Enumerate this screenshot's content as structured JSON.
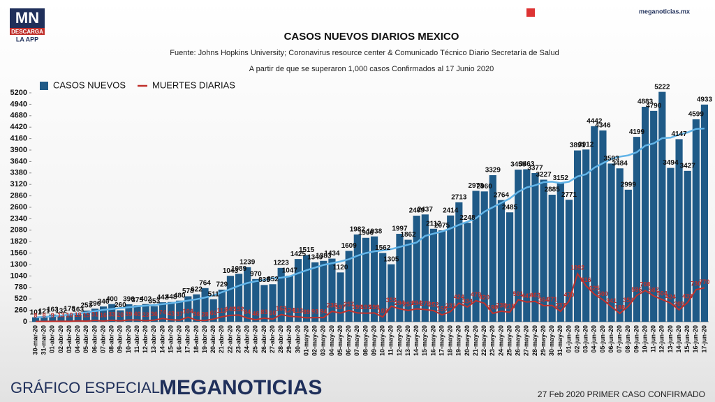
{
  "brand": {
    "logo": "MN",
    "logo_sub": "DESCARGA",
    "logo_app": "LA APP",
    "site": "meganoticias.mx",
    "footer_left": "GRÁFICO ESPECIAL",
    "footer_brand": "MEGANOTICIAS",
    "footer_right": "27 Feb 2020 PRIMER CASO CONFIRMADO"
  },
  "chart_data": {
    "type": "bar",
    "title": "CASOS NUEVOS DIARIOS MEXICO",
    "subtitle": "Fuente: Johns Hopkins University; Coronavirus resource center & Comunicado Técnico Diario Secretaría de Salud",
    "subtitle2": "A partir de que se superaron 1,000 casos Confirmados al 17 Junio 2020",
    "categories": [
      "30-mar-20",
      "31-mar-20",
      "01-abr-20",
      "02-abr-20",
      "03-abr-20",
      "04-abr-20",
      "05-abr-20",
      "06-abr-20",
      "07-abr-20",
      "08-abr-20",
      "09-abr-20",
      "10-abr-20",
      "11-abr-20",
      "12-abr-20",
      "13-abr-20",
      "14-abr-20",
      "15-abr-20",
      "16-abr-20",
      "17-abr-20",
      "18-abr-20",
      "19-abr-20",
      "20-abr-20",
      "21-abr-20",
      "22-abr-20",
      "23-abr-20",
      "24-abr-20",
      "25-abr-20",
      "26-abr-20",
      "27-abr-20",
      "28-abr-20",
      "29-abr-20",
      "30-abr-20",
      "01-may-20",
      "02-may-20",
      "03-may-20",
      "04-may-20",
      "05-may-20",
      "06-may-20",
      "07-may-20",
      "08-may-20",
      "09-may-20",
      "10-may-20",
      "11-may-20",
      "12-may-20",
      "13-may-20",
      "14-may-20",
      "15-may-20",
      "16-may-20",
      "17-may-20",
      "18-may-20",
      "19-may-20",
      "20-may-20",
      "21-may-20",
      "22-may-20",
      "23-may-20",
      "24-may-20",
      "25-may-20",
      "26-may-20",
      "27-may-20",
      "28-may-20",
      "29-may-20",
      "30-may-20",
      "31-may-20",
      "01-jun-20",
      "02-jun-20",
      "03-jun-20",
      "04-jun-20",
      "05-jun-20",
      "06-jun-20",
      "07-jun-20",
      "08-jun-20",
      "09-jun-20",
      "10-jun-20",
      "11-jun-20",
      "12-jun-20",
      "13-jun-20",
      "14-jun-20",
      "15-jun-20",
      "16-jun-20",
      "17-jun-20"
    ],
    "series": [
      {
        "name": "CASOS NUEVOS",
        "color": "#1f5a87",
        "values": [
          101,
          121,
          163,
          132,
          178,
          163,
          253,
          296,
          346,
          400,
          260,
          396,
          375,
          402,
          353,
          442,
          448,
          480,
          578,
          622,
          764,
          511,
          729,
          1043,
          1089,
          1239,
          970,
          835,
          852,
          1223,
          1047,
          1425,
          1515,
          1349,
          1383,
          1434,
          1120,
          1609,
          1982,
          1906,
          1938,
          1562,
          1305,
          1997,
          1862,
          2409,
          2437,
          2112,
          2075,
          2414,
          2713,
          2248,
          2973,
          2960,
          3329,
          2764,
          2485,
          3455,
          3463,
          3377,
          3227,
          2885,
          3152,
          2771,
          3891,
          3912,
          4442,
          4346,
          3593,
          3484,
          2999,
          4199,
          4883,
          4790,
          5222,
          3494,
          4147,
          3427,
          4599,
          4933
        ]
      },
      {
        "name": "MUERTES DIARIAS",
        "color": "#c0302b",
        "values": [
          8,
          8,
          9,
          13,
          10,
          19,
          15,
          31,
          16,
          33,
          20,
          39,
          40,
          23,
          36,
          74,
          43,
          37,
          104,
          36,
          28,
          60,
          113,
          145,
          152,
          84,
          46,
          83,
          60,
          163,
          124,
          113,
          89,
          93,
          94,
          236,
          197,
          257,
          199,
          193,
          199,
          108,
          353,
          294,
          257,
          294,
          278,
          252,
          155,
          231,
          424,
          334,
          479,
          420,
          190,
          239,
          215,
          501,
          447,
          463,
          364,
          371,
          237,
          470,
          1092,
          816,
          625,
          500,
          341,
          188,
          354,
          596,
          708,
          587,
          504,
          424,
          269,
          439,
          730,
          770
        ]
      },
      {
        "color": "#62b4e8",
        "values": [
          100,
          110,
          125,
          140,
          160,
          185,
          210,
          240,
          270,
          290,
          310,
          330,
          350,
          365,
          380,
          400,
          420,
          450,
          480,
          510,
          550,
          600,
          670,
          740,
          820,
          880,
          920,
          950,
          990,
          1000,
          1030,
          1100,
          1170,
          1230,
          1290,
          1330,
          1370,
          1420,
          1500,
          1560,
          1600,
          1620,
          1650,
          1700,
          1750,
          1800,
          1950,
          2000,
          2050,
          2120,
          2200,
          2270,
          2350,
          2500,
          2600,
          2700,
          2800,
          2950,
          3050,
          3100,
          3170,
          3180,
          3150,
          3180,
          3300,
          3350,
          3500,
          3600,
          3700,
          3750,
          3780,
          3850,
          4000,
          4050,
          4170,
          4180,
          4250,
          4300,
          4380,
          4390
        ]
      }
    ],
    "ylim": [
      0,
      5200
    ],
    "yticks": [
      0,
      260,
      520,
      780,
      1040,
      1300,
      1560,
      1820,
      2080,
      2340,
      2600,
      2860,
      3120,
      3380,
      3640,
      3900,
      4160,
      4420,
      4680,
      4940,
      5200
    ],
    "grid": false,
    "legend": "top-left"
  }
}
